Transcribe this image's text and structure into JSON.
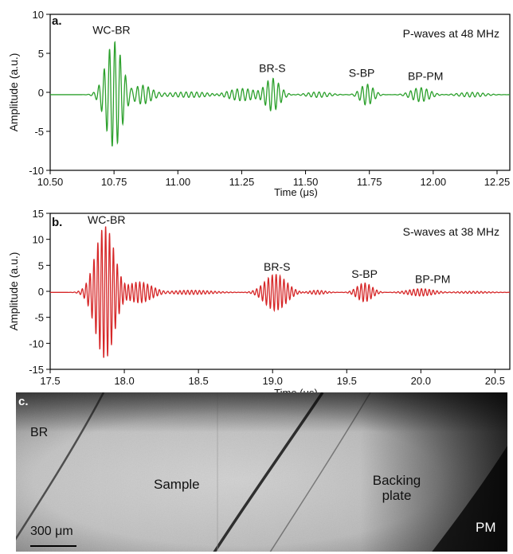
{
  "panels": {
    "a": {
      "letter": "a.",
      "caption": "P-waves at 48 MHz"
    },
    "b": {
      "letter": "b.",
      "caption": "S-waves at 38 MHz"
    },
    "c": {
      "letter": "c.",
      "labels": {
        "br": "BR",
        "sample": "Sample",
        "backing_line1": "Backing",
        "backing_line2": "plate",
        "pm": "PM"
      },
      "scale_bar": "300 μm"
    }
  },
  "colors": {
    "p_wave": "#2ca02c",
    "s_wave": "#d62728"
  },
  "chart_data": [
    {
      "type": "line",
      "xlabel": "Time (μs)",
      "ylabel": "Amplitude (a.u.)",
      "xlim": [
        10.5,
        12.3
      ],
      "ylim": [
        -10,
        10
      ],
      "xticks": [
        "10.50",
        "10.75",
        "11.00",
        "11.25",
        "11.50",
        "11.75",
        "12.00",
        "12.25"
      ],
      "yticks": [
        "10",
        "5",
        "0",
        "-5",
        "-10"
      ],
      "grid": false,
      "series": [
        {
          "color": "#2ca02c",
          "baseline": -0.3,
          "carrier_mhz": 48,
          "wave_packets": [
            {
              "center": 10.75,
              "width": 0.045,
              "amplitude": 6.8
            },
            {
              "center": 10.86,
              "width": 0.05,
              "amplitude": 1.2
            },
            {
              "center": 11.05,
              "width": 0.12,
              "amplitude": 0.35
            },
            {
              "center": 11.25,
              "width": 0.08,
              "amplitude": 0.8
            },
            {
              "center": 11.37,
              "width": 0.04,
              "amplitude": 2.1
            },
            {
              "center": 11.55,
              "width": 0.06,
              "amplitude": 0.35
            },
            {
              "center": 11.74,
              "width": 0.035,
              "amplitude": 1.35
            },
            {
              "center": 11.95,
              "width": 0.05,
              "amplitude": 0.9
            },
            {
              "center": 12.15,
              "width": 0.07,
              "amplitude": 0.3
            }
          ]
        }
      ],
      "annotations": [
        {
          "text": "WC-BR",
          "x": 10.74,
          "y": 7.5
        },
        {
          "text": "BR-S",
          "x": 11.37,
          "y": 2.6
        },
        {
          "text": "S-BP",
          "x": 11.72,
          "y": 2.0
        },
        {
          "text": "BP-PM",
          "x": 11.97,
          "y": 1.6
        }
      ]
    },
    {
      "type": "line",
      "xlabel": "Time (μs)",
      "ylabel": "Amplitude (a.u.)",
      "xlim": [
        17.5,
        20.6
      ],
      "ylim": [
        -15,
        15
      ],
      "xticks": [
        "17.5",
        "18.0",
        "18.5",
        "19.0",
        "19.5",
        "20.0",
        "20.5"
      ],
      "yticks": [
        "15",
        "10",
        "5",
        "0",
        "-5",
        "-10",
        "-15"
      ],
      "grid": false,
      "series": [
        {
          "color": "#d62728",
          "baseline": -0.2,
          "carrier_mhz": 38,
          "wave_packets": [
            {
              "center": 17.87,
              "width": 0.09,
              "amplitude": 12.8
            },
            {
              "center": 18.1,
              "width": 0.12,
              "amplitude": 2.0
            },
            {
              "center": 18.45,
              "width": 0.2,
              "amplitude": 0.4
            },
            {
              "center": 19.02,
              "width": 0.1,
              "amplitude": 3.5
            },
            {
              "center": 19.3,
              "width": 0.08,
              "amplitude": 0.4
            },
            {
              "center": 19.62,
              "width": 0.07,
              "amplitude": 1.8
            },
            {
              "center": 20.0,
              "width": 0.12,
              "amplitude": 0.7
            },
            {
              "center": 20.35,
              "width": 0.15,
              "amplitude": 0.2
            }
          ]
        }
      ],
      "annotations": [
        {
          "text": "WC-BR",
          "x": 17.88,
          "y": 13.0
        },
        {
          "text": "BR-S",
          "x": 19.03,
          "y": 4.0
        },
        {
          "text": "S-BP",
          "x": 19.62,
          "y": 2.6
        },
        {
          "text": "BP-PM",
          "x": 20.08,
          "y": 1.6
        }
      ]
    }
  ]
}
